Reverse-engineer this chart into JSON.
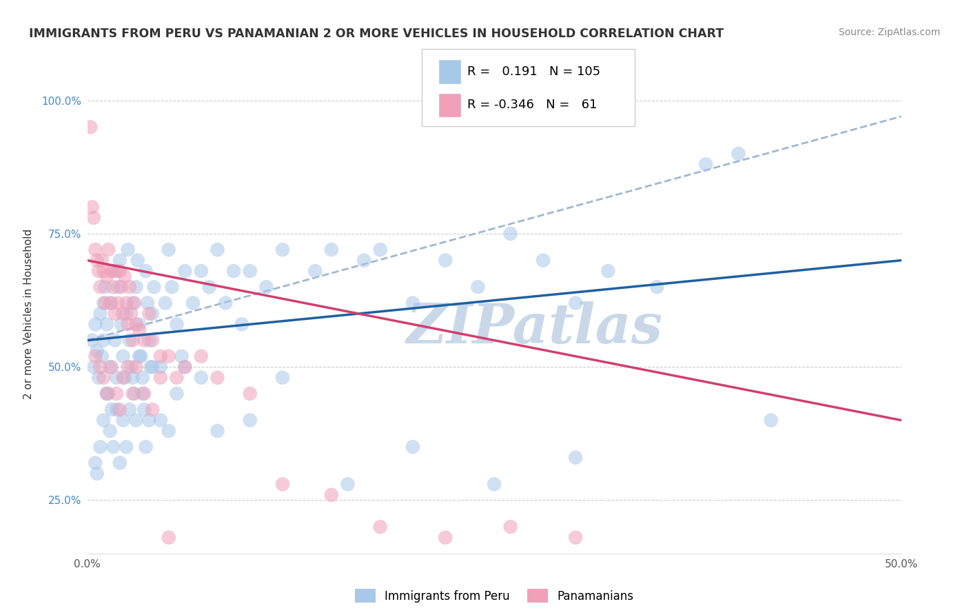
{
  "title": "IMMIGRANTS FROM PERU VS PANAMANIAN 2 OR MORE VEHICLES IN HOUSEHOLD CORRELATION CHART",
  "source": "Source: ZipAtlas.com",
  "ylabel_label": "2 or more Vehicles in Household",
  "legend_label1": "Immigrants from Peru",
  "legend_label2": "Panamanians",
  "R1": 0.191,
  "N1": 105,
  "R2": -0.346,
  "N2": 61,
  "blue_color": "#a8c8e8",
  "pink_color": "#f0a0b8",
  "blue_line_color": "#2060a0",
  "pink_line_color": "#d04070",
  "gray_dashed_color": "#a0b8d0",
  "watermark_color": "#c8d8e8",
  "x_min": 0.0,
  "x_max": 50.0,
  "y_min": 15.0,
  "y_max": 105.0,
  "yticks": [
    25.0,
    50.0,
    75.0,
    100.0
  ],
  "xticks": [
    0.0,
    50.0
  ],
  "blue_points_x": [
    0.3,
    0.4,
    0.5,
    0.6,
    0.7,
    0.8,
    0.9,
    1.0,
    1.0,
    1.1,
    1.2,
    1.3,
    1.4,
    1.5,
    1.6,
    1.7,
    1.8,
    1.9,
    2.0,
    2.1,
    2.2,
    2.3,
    2.4,
    2.5,
    2.6,
    2.7,
    2.8,
    2.9,
    3.0,
    3.1,
    3.2,
    3.3,
    3.4,
    3.5,
    3.6,
    3.7,
    3.8,
    3.9,
    4.0,
    4.1,
    4.5,
    4.8,
    5.0,
    5.2,
    5.5,
    5.8,
    6.0,
    6.5,
    7.0,
    7.5,
    8.0,
    8.5,
    9.0,
    9.5,
    10.0,
    11.0,
    12.0,
    14.0,
    15.0,
    17.0,
    18.0,
    20.0,
    22.0,
    24.0,
    26.0,
    28.0,
    30.0,
    32.0,
    35.0,
    0.5,
    0.6,
    0.8,
    1.0,
    1.2,
    1.4,
    1.5,
    1.6,
    1.8,
    2.0,
    2.2,
    2.4,
    2.6,
    2.8,
    3.0,
    3.2,
    3.4,
    3.6,
    3.8,
    4.0,
    4.5,
    5.0,
    5.5,
    6.0,
    7.0,
    8.0,
    10.0,
    12.0,
    16.0,
    20.0,
    25.0,
    30.0,
    38.0,
    40.0,
    42.0
  ],
  "blue_points_y": [
    55.0,
    50.0,
    58.0,
    53.0,
    48.0,
    60.0,
    52.0,
    62.0,
    55.0,
    65.0,
    58.0,
    45.0,
    50.0,
    62.0,
    68.0,
    55.0,
    42.0,
    65.0,
    70.0,
    58.0,
    52.0,
    48.0,
    60.0,
    72.0,
    55.0,
    50.0,
    62.0,
    45.0,
    65.0,
    70.0,
    58.0,
    52.0,
    48.0,
    42.0,
    68.0,
    62.0,
    55.0,
    50.0,
    60.0,
    65.0,
    50.0,
    62.0,
    72.0,
    65.0,
    58.0,
    52.0,
    68.0,
    62.0,
    68.0,
    65.0,
    72.0,
    62.0,
    68.0,
    58.0,
    68.0,
    65.0,
    72.0,
    68.0,
    72.0,
    70.0,
    72.0,
    62.0,
    70.0,
    65.0,
    75.0,
    70.0,
    62.0,
    68.0,
    65.0,
    32.0,
    30.0,
    35.0,
    40.0,
    45.0,
    38.0,
    42.0,
    35.0,
    48.0,
    32.0,
    40.0,
    35.0,
    42.0,
    48.0,
    40.0,
    52.0,
    45.0,
    35.0,
    40.0,
    50.0,
    40.0,
    38.0,
    45.0,
    50.0,
    48.0,
    38.0,
    40.0,
    48.0,
    28.0,
    35.0,
    28.0,
    33.0,
    88.0,
    90.0,
    40.0
  ],
  "pink_points_x": [
    0.2,
    0.3,
    0.4,
    0.5,
    0.6,
    0.7,
    0.8,
    0.9,
    1.0,
    1.1,
    1.2,
    1.3,
    1.4,
    1.5,
    1.6,
    1.7,
    1.8,
    1.9,
    2.0,
    2.1,
    2.2,
    2.3,
    2.4,
    2.5,
    2.6,
    2.7,
    2.8,
    2.9,
    3.0,
    3.2,
    3.5,
    3.8,
    4.0,
    4.5,
    5.0,
    5.5,
    6.0,
    7.0,
    8.0,
    10.0,
    12.0,
    15.0,
    18.0,
    22.0,
    26.0,
    30.0,
    0.5,
    0.8,
    1.0,
    1.2,
    1.5,
    1.8,
    2.0,
    2.2,
    2.5,
    2.8,
    3.0,
    3.5,
    4.0,
    4.5,
    5.0
  ],
  "pink_points_y": [
    95.0,
    80.0,
    78.0,
    72.0,
    70.0,
    68.0,
    65.0,
    70.0,
    68.0,
    62.0,
    67.0,
    72.0,
    62.0,
    68.0,
    65.0,
    60.0,
    68.0,
    62.0,
    68.0,
    65.0,
    60.0,
    67.0,
    62.0,
    58.0,
    65.0,
    60.0,
    55.0,
    62.0,
    58.0,
    57.0,
    55.0,
    60.0,
    55.0,
    52.0,
    52.0,
    48.0,
    50.0,
    52.0,
    48.0,
    45.0,
    28.0,
    26.0,
    20.0,
    18.0,
    20.0,
    18.0,
    52.0,
    50.0,
    48.0,
    45.0,
    50.0,
    45.0,
    42.0,
    48.0,
    50.0,
    45.0,
    50.0,
    45.0,
    42.0,
    48.0,
    18.0
  ],
  "blue_line_x0": 0.0,
  "blue_line_y0": 55.0,
  "blue_line_x1": 50.0,
  "blue_line_y1": 70.0,
  "pink_line_x0": 0.0,
  "pink_line_y0": 70.0,
  "pink_line_x1": 50.0,
  "pink_line_y1": 40.0,
  "gray_line_x0": 0.0,
  "gray_line_y0": 55.0,
  "gray_line_x1": 50.0,
  "gray_line_y1": 97.0
}
